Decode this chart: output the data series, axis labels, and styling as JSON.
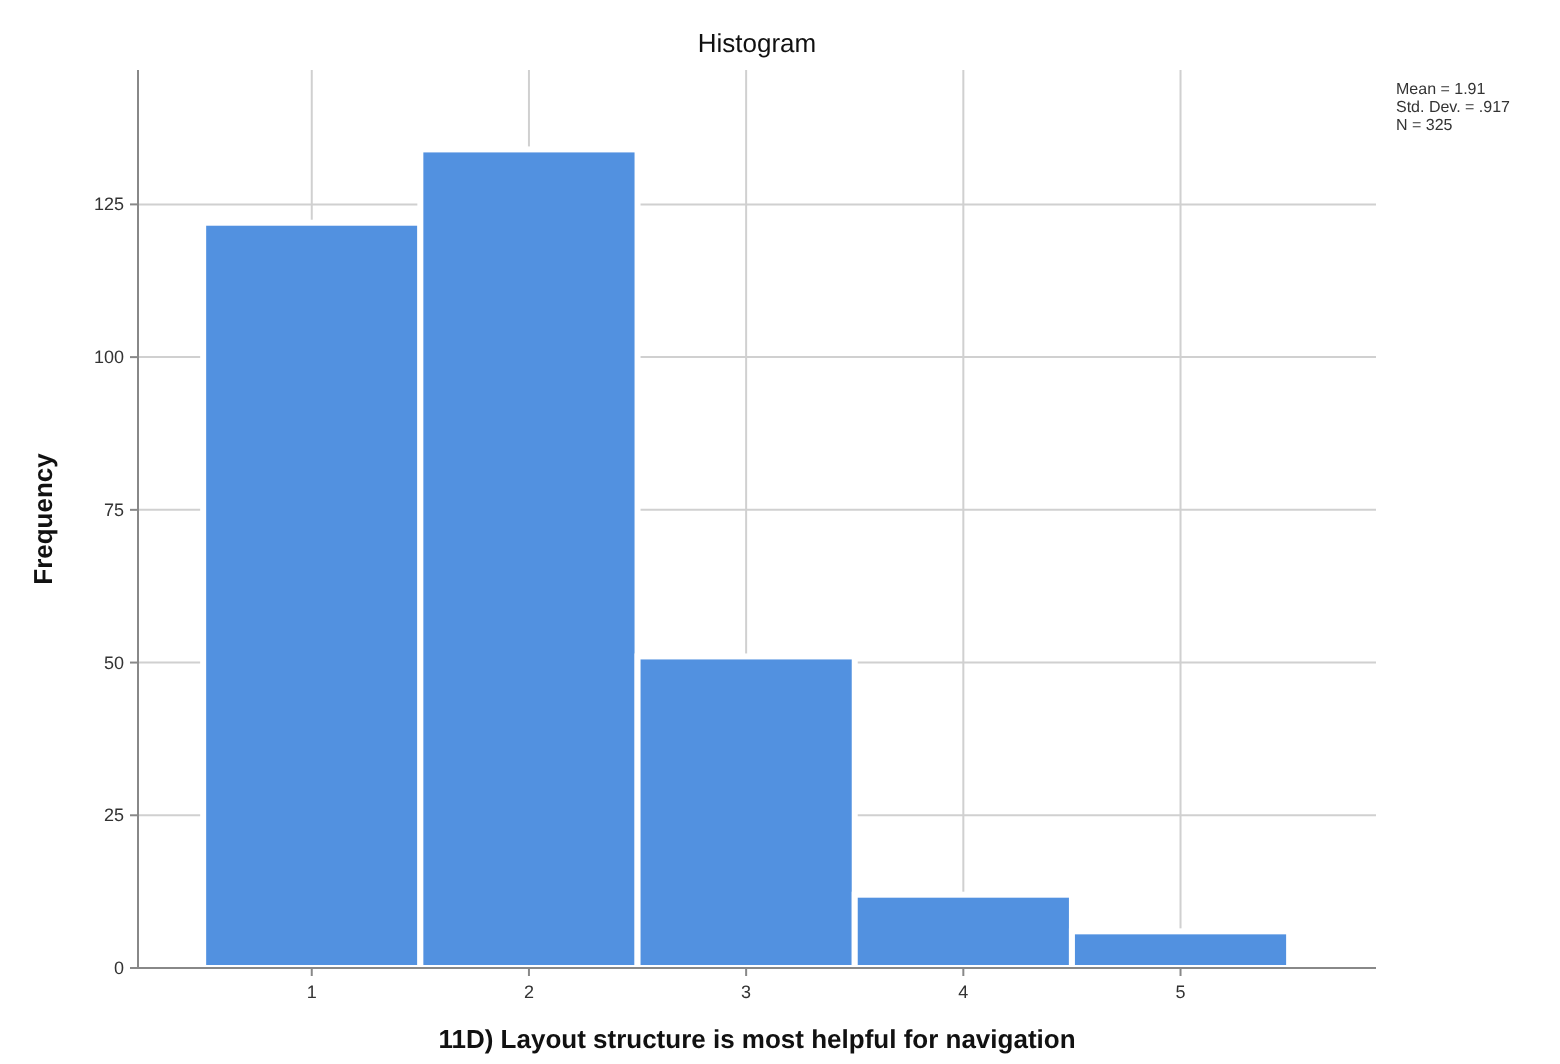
{
  "chart_data": {
    "type": "histogram",
    "title": "Histogram",
    "xlabel": "11D) Layout structure is most helpful for navigation",
    "ylabel": "Frequency",
    "bins": [
      0.5,
      1.5,
      2.5,
      3.5,
      4.5,
      5.5
    ],
    "values": [
      122,
      134,
      51,
      12,
      6
    ],
    "color": "#5291e0",
    "xlim": [
      0.2,
      5.9
    ],
    "xticks": [
      1,
      2,
      3,
      4,
      5
    ],
    "ylim": [
      0,
      147
    ],
    "yticks": [
      0,
      25,
      50,
      75,
      100,
      125
    ],
    "grid": true,
    "annotations": [
      "Mean = 1.91",
      "Std. Dev. = .917",
      "N = 325"
    ]
  }
}
